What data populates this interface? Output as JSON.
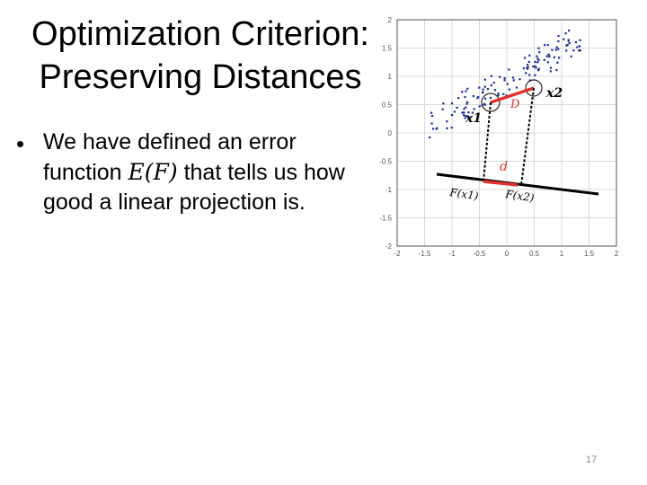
{
  "slide": {
    "title_line1": "Optimization Criterion:",
    "title_line2": "Preserving Distances",
    "bullet_prefix": "We have defined an error function ",
    "bullet_math": "E(F)",
    "bullet_suffix": " that tells us how good a linear projection is.",
    "page_number": "17"
  },
  "figure": {
    "y_ticks": [
      "2",
      "1.5",
      "1",
      "0.5",
      "0",
      "-0.5",
      "-1",
      "-1.5",
      "-2"
    ],
    "x_ticks": [
      "-2",
      "-1.5",
      "-1",
      "-0.5",
      "0",
      "0.5",
      "1",
      "1.5",
      "2"
    ],
    "labels": {
      "x1": "x1",
      "x2": "x2",
      "D": "D",
      "d": "d",
      "Fx1": "F(x1)",
      "Fx2": "F(x2)"
    },
    "colors": {
      "points": "#1a2f9a",
      "distance": "#e03030",
      "grid": "#d8d8d8"
    }
  }
}
